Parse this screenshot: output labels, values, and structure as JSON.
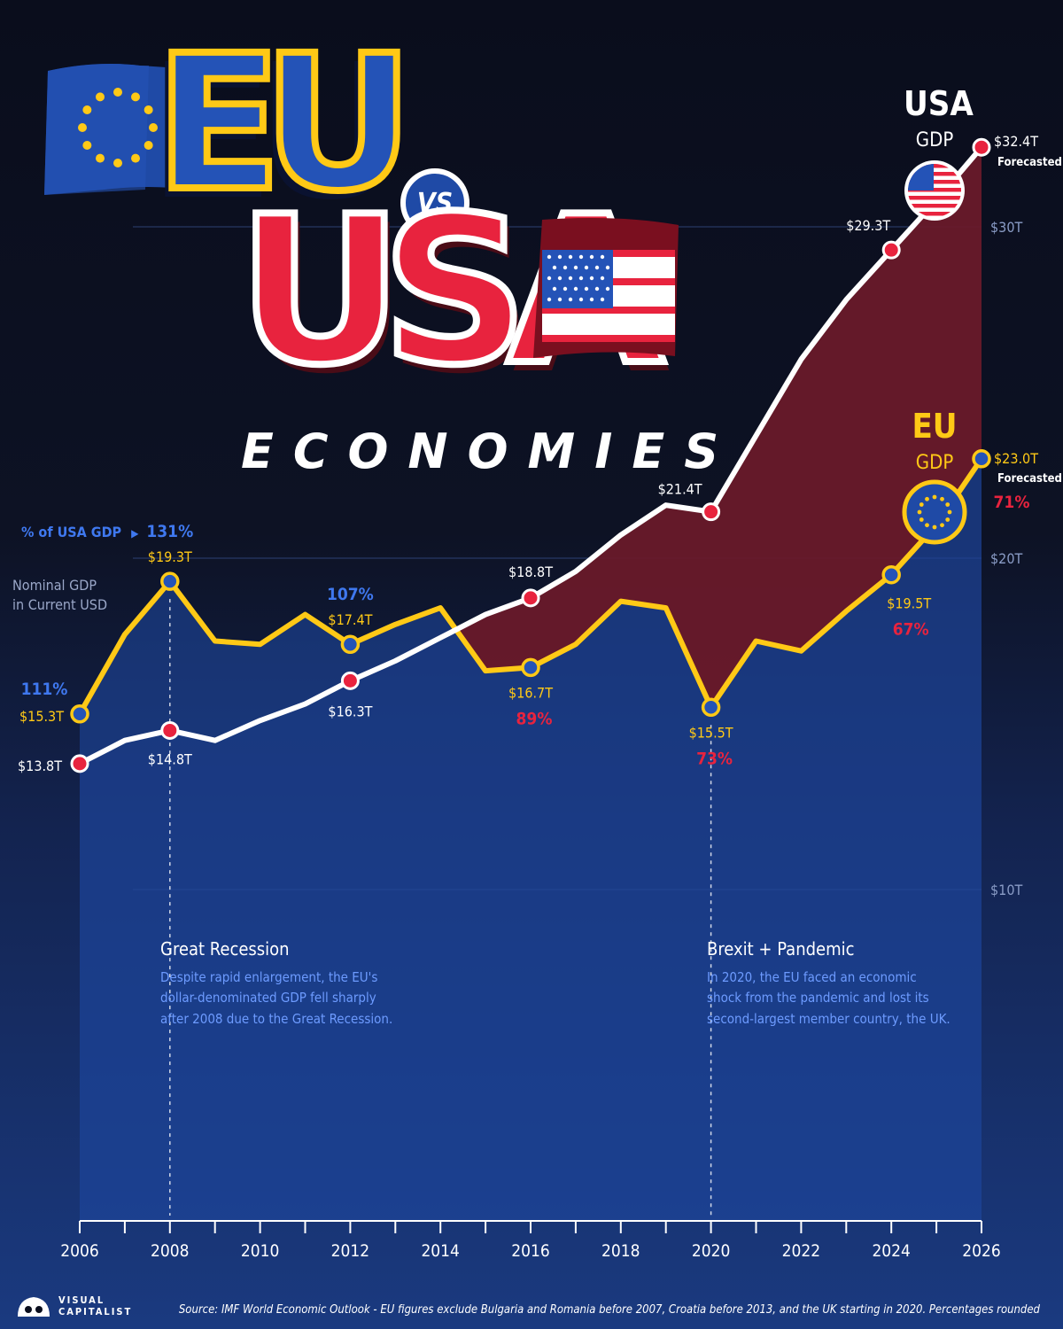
{
  "header": {
    "title_left": "EU",
    "title_vs": "VS",
    "title_right": "USA",
    "subtitle": "ECONOMIES"
  },
  "legend": {
    "usa_name": "USA",
    "usa_metric": "GDP",
    "eu_name": "EU",
    "eu_metric": "GDP"
  },
  "side": {
    "pct_label": "% of USA GDP",
    "pct_arrow": "▶",
    "nominal_line1": "Nominal GDP",
    "nominal_line2": "in Current USD"
  },
  "annotations": [
    {
      "year": 2008,
      "title": "Great Recession",
      "lines": [
        "Despite rapid enlargement, the EU's",
        "dollar-denominated GDP fell sharply",
        "after 2008 due to the Great Recession."
      ]
    },
    {
      "year": 2020,
      "title": "Brexit + Pandemic",
      "lines": [
        "In 2020, the EU faced an economic",
        "shock from the pandemic and lost its",
        "second-largest member country, the UK."
      ]
    }
  ],
  "forecast_label": "Forecasted",
  "source": "Source: IMF World Economic Outlook - EU figures exclude Bulgaria and Romania before 2007, Croatia before 2013, and the UK starting in 2020. Percentages rounded",
  "brand": {
    "line1": "VISUAL",
    "line2": "CAPITALIST"
  },
  "colors": {
    "usa": "#e8233e",
    "eu": "#ffc916",
    "eu_blue": "#2453b7",
    "pct_blue": "#3f78ef",
    "gap_fill": "#6e1826"
  },
  "chart_data": {
    "type": "line",
    "xlim": [
      2006,
      2026
    ],
    "ylim": [
      0,
      35
    ],
    "x_ticks": [
      2006,
      2008,
      2010,
      2012,
      2014,
      2016,
      2018,
      2020,
      2022,
      2024,
      2026
    ],
    "y_ticks": [
      {
        "value": 10,
        "label": "$10T"
      },
      {
        "value": 20,
        "label": "$20T"
      },
      {
        "value": 30,
        "label": "$30T"
      }
    ],
    "grid": true,
    "x": [
      2006,
      2007,
      2008,
      2009,
      2010,
      2011,
      2012,
      2013,
      2014,
      2015,
      2016,
      2017,
      2018,
      2019,
      2020,
      2021,
      2022,
      2023,
      2024,
      2025,
      2026
    ],
    "series": [
      {
        "name": "USA",
        "values": [
          13.8,
          14.5,
          14.8,
          14.5,
          15.1,
          15.6,
          16.3,
          16.9,
          17.6,
          18.3,
          18.8,
          19.6,
          20.7,
          21.6,
          21.4,
          23.7,
          26.0,
          27.8,
          29.3,
          30.8,
          32.4
        ]
      },
      {
        "name": "EU",
        "values": [
          15.3,
          17.7,
          19.3,
          17.5,
          17.4,
          18.3,
          17.4,
          18.0,
          18.5,
          16.6,
          16.7,
          17.4,
          18.7,
          18.5,
          15.5,
          17.5,
          17.2,
          18.4,
          19.5,
          21.0,
          23.0
        ]
      }
    ],
    "usa_labels": [
      {
        "x": 2006,
        "text": "$13.8T"
      },
      {
        "x": 2008,
        "text": "$14.8T"
      },
      {
        "x": 2012,
        "text": "$16.3T"
      },
      {
        "x": 2016,
        "text": "$18.8T"
      },
      {
        "x": 2020,
        "text": "$21.4T"
      },
      {
        "x": 2024,
        "text": "$29.3T"
      },
      {
        "x": 2026,
        "text": "$32.4T"
      }
    ],
    "eu_labels": [
      {
        "x": 2006,
        "text": "$15.3T",
        "pct": "111%"
      },
      {
        "x": 2008,
        "text": "$19.3T",
        "pct": "131%"
      },
      {
        "x": 2012,
        "text": "$17.4T",
        "pct": "107%"
      },
      {
        "x": 2016,
        "text": "$16.7T",
        "pct": "89%"
      },
      {
        "x": 2020,
        "text": "$15.5T",
        "pct": "73%"
      },
      {
        "x": 2024,
        "text": "$19.5T",
        "pct": "67%"
      },
      {
        "x": 2026,
        "text": "$23.0T",
        "pct": "71%"
      }
    ]
  }
}
